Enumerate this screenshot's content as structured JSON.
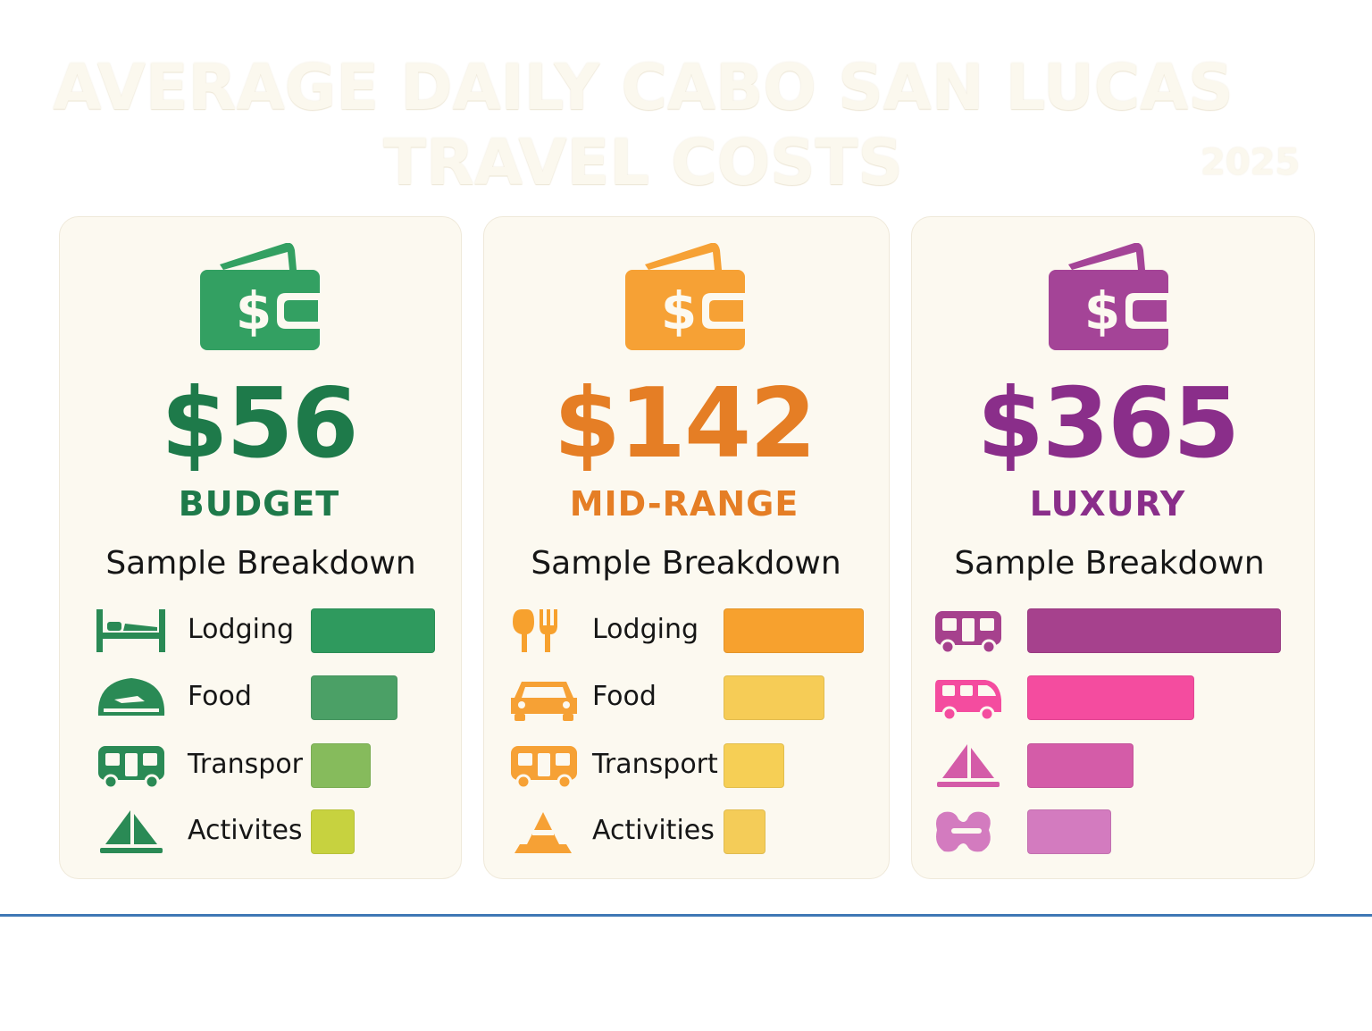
{
  "header": {
    "title_line1": "AVERAGE DAILY CABO SAN LUCAS",
    "title_line2": "TRAVEL COSTS",
    "year": "2025"
  },
  "chart_data": {
    "type": "bar",
    "title": "AVERAGE DAILY CABO SAN LUCAS TRAVEL COSTS",
    "tiers": [
      {
        "price": "$56",
        "name": "BUDGET",
        "subtitle": "Sample Breakdown",
        "categories": [
          "Lodging",
          "Food",
          "Transpor",
          "Activites"
        ],
        "icons": [
          "bed-icon",
          "food-icon",
          "bus-icon",
          "sailboat-icon"
        ],
        "values": [
          1.0,
          0.7,
          0.48,
          0.35
        ],
        "colors": [
          "#2f9a5e",
          "#4ba066",
          "#86bb5c",
          "#c7d23f"
        ],
        "accent": "#1e7a4a",
        "wallet": "#33a062"
      },
      {
        "price": "$142",
        "name": "MID-RANGE",
        "subtitle": "Sample Breakdown",
        "categories": [
          "Lodging",
          "Food",
          "Transport",
          "Activities"
        ],
        "icons": [
          "utensils-icon",
          "car-icon",
          "bus-icon",
          "cone-icon"
        ],
        "values": [
          1.0,
          0.72,
          0.43,
          0.3
        ],
        "colors": [
          "#f7a12e",
          "#f6cc56",
          "#f6cf55",
          "#f4cc58"
        ],
        "accent": "#e57e25",
        "wallet": "#f6a135"
      },
      {
        "price": "$365",
        "name": "LUXURY",
        "subtitle": "Sample Breakdown",
        "categories": [
          "",
          "",
          "",
          ""
        ],
        "icons": [
          "bus-icon",
          "van-icon",
          "sailboat-icon",
          "mask-icon"
        ],
        "values": [
          1.0,
          0.66,
          0.42,
          0.33
        ],
        "colors": [
          "#a6418d",
          "#f44c9f",
          "#d45ca8",
          "#d37bbf"
        ],
        "accent": "#8a2e8a",
        "wallet": "#a44497"
      }
    ]
  }
}
